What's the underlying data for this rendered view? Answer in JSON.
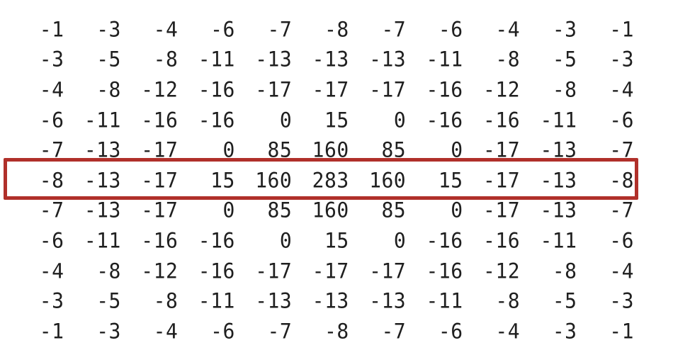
{
  "matrix": {
    "rows": [
      [
        "-1",
        "-3",
        "-4",
        "-6",
        "-7",
        "-8",
        "-7",
        "-6",
        "-4",
        "-3",
        "-1"
      ],
      [
        "-3",
        "-5",
        "-8",
        "-11",
        "-13",
        "-13",
        "-13",
        "-11",
        "-8",
        "-5",
        "-3"
      ],
      [
        "-4",
        "-8",
        "-12",
        "-16",
        "-17",
        "-17",
        "-17",
        "-16",
        "-12",
        "-8",
        "-4"
      ],
      [
        "-6",
        "-11",
        "-16",
        "-16",
        "0",
        "15",
        "0",
        "-16",
        "-16",
        "-11",
        "-6"
      ],
      [
        "-7",
        "-13",
        "-17",
        "0",
        "85",
        "160",
        "85",
        "0",
        "-17",
        "-13",
        "-7"
      ],
      [
        "-8",
        "-13",
        "-17",
        "15",
        "160",
        "283",
        "160",
        "15",
        "-17",
        "-13",
        "-8"
      ],
      [
        "-7",
        "-13",
        "-17",
        "0",
        "85",
        "160",
        "85",
        "0",
        "-17",
        "-13",
        "-7"
      ],
      [
        "-6",
        "-11",
        "-16",
        "-16",
        "0",
        "15",
        "0",
        "-16",
        "-16",
        "-11",
        "-6"
      ],
      [
        "-4",
        "-8",
        "-12",
        "-16",
        "-17",
        "-17",
        "-17",
        "-16",
        "-12",
        "-8",
        "-4"
      ],
      [
        "-3",
        "-5",
        "-8",
        "-11",
        "-13",
        "-13",
        "-13",
        "-11",
        "-8",
        "-5",
        "-3"
      ],
      [
        "-1",
        "-3",
        "-4",
        "-6",
        "-7",
        "-8",
        "-7",
        "-6",
        "-4",
        "-3",
        "-1"
      ]
    ],
    "highlighted_row_index": 5
  },
  "colors": {
    "text": "#1f1f1f",
    "highlight_border": "#b0302a",
    "background": "#ffffff"
  }
}
